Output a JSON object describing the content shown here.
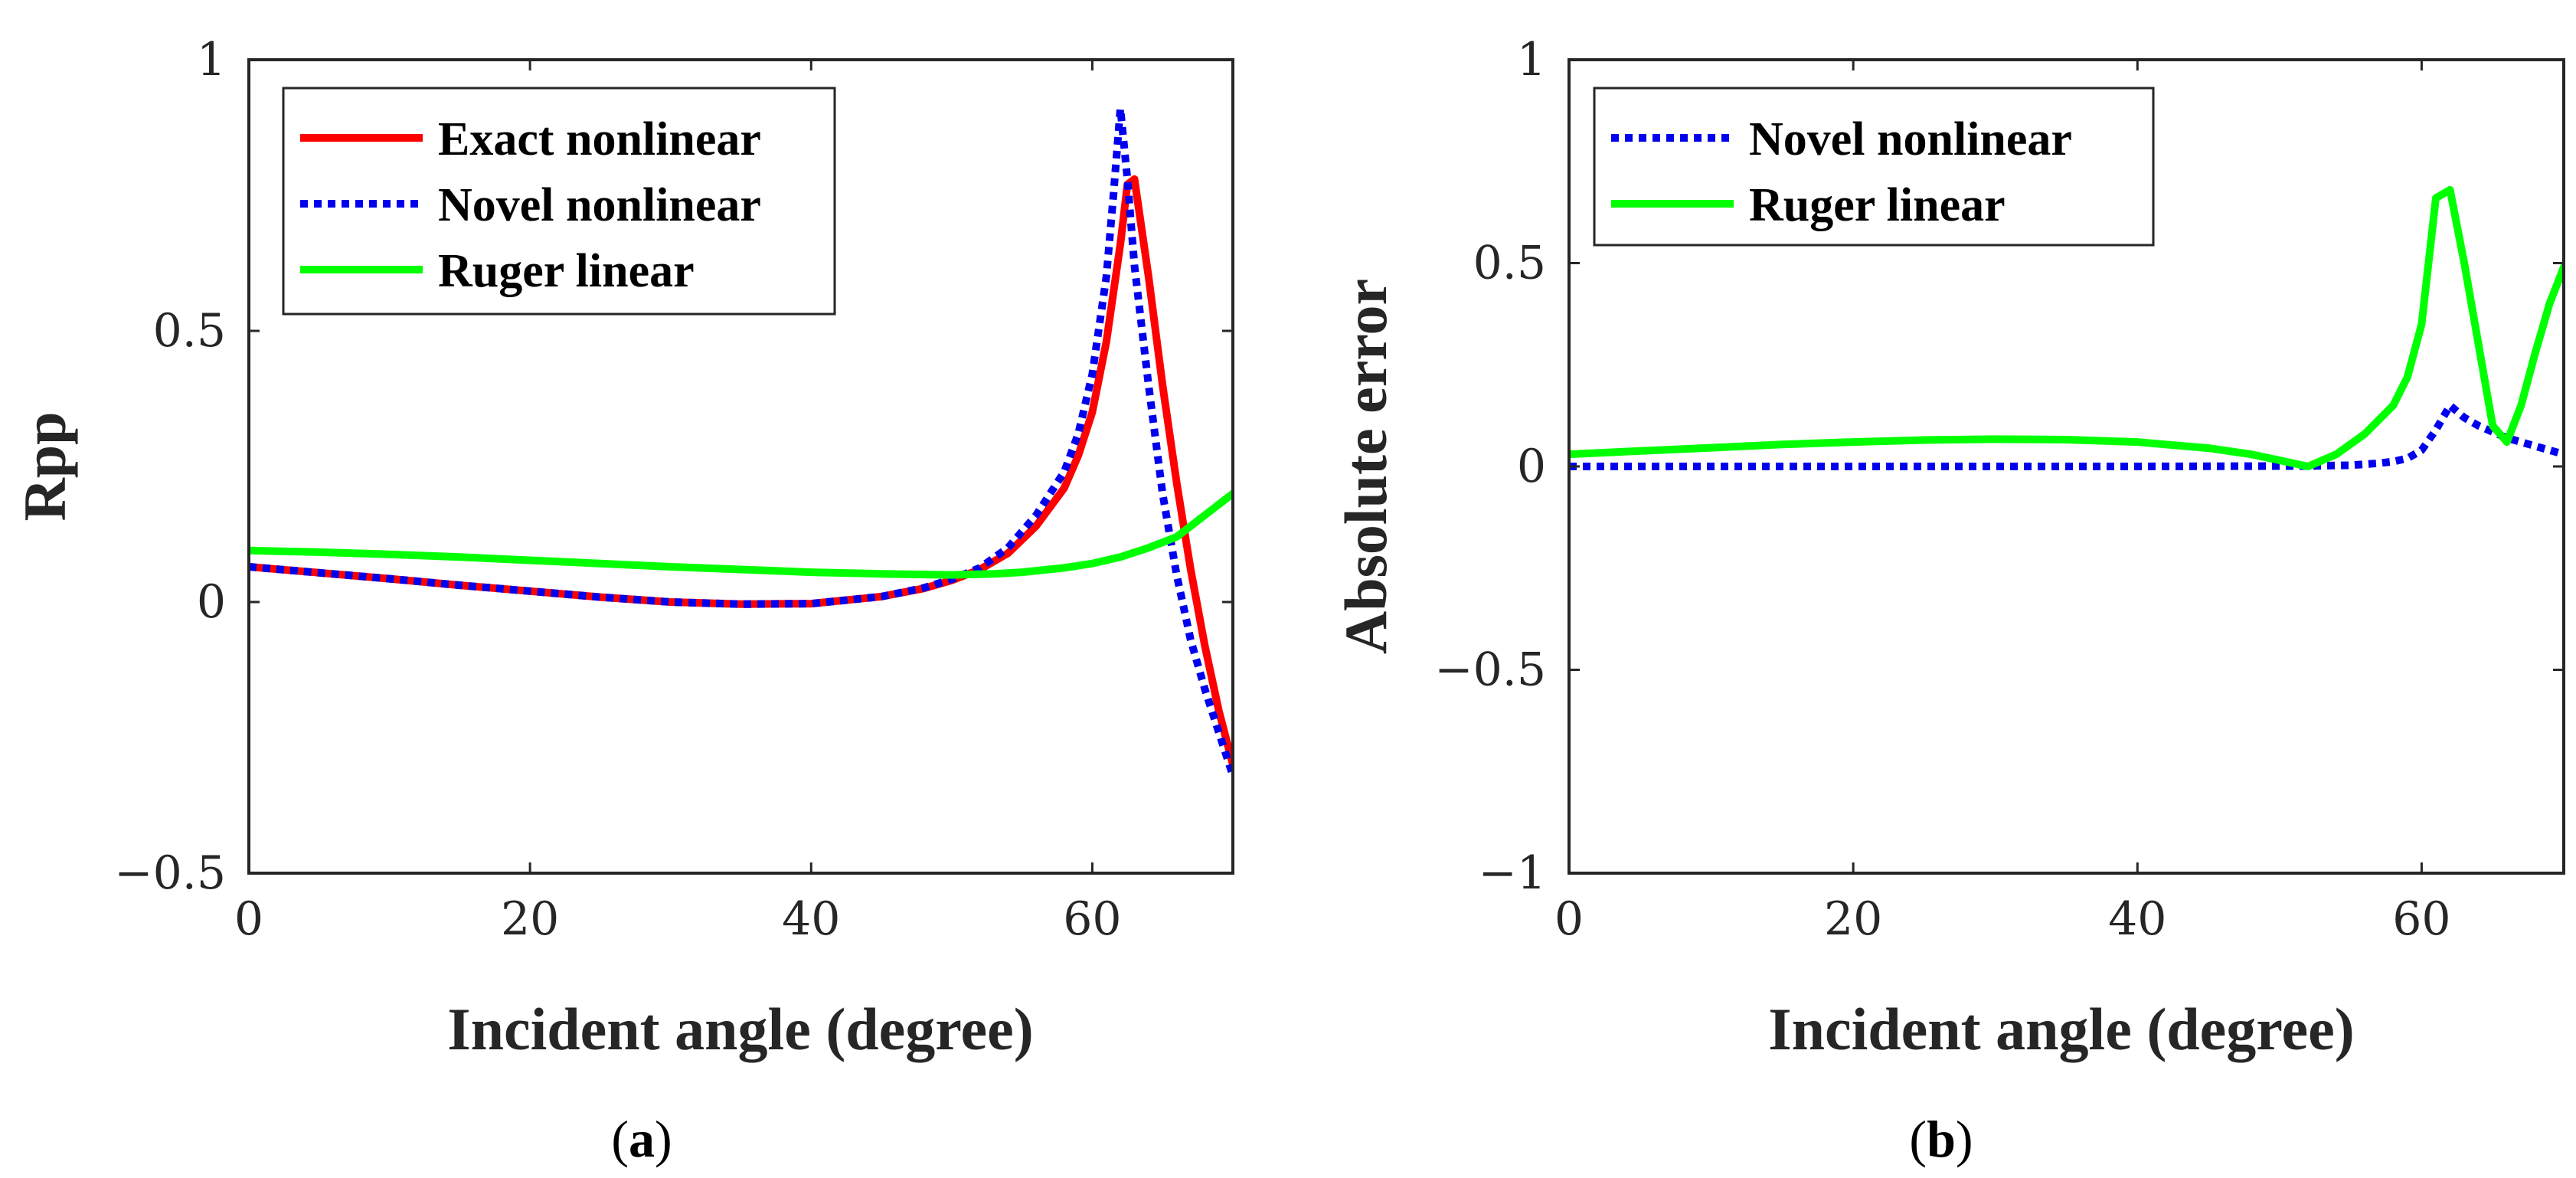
{
  "chart_data": [
    {
      "type": "line",
      "xlabel": "Incident angle (degree)",
      "ylabel": "Rpp",
      "xlim": [
        0,
        70
      ],
      "ylim": [
        -0.5,
        1
      ],
      "xticks": [
        0,
        20,
        40,
        60
      ],
      "xtick_labels": [
        "0",
        "20",
        "40",
        "60"
      ],
      "yticks": [
        -0.5,
        0,
        0.5,
        1
      ],
      "ytick_labels": [
        "−0.5",
        "0",
        "0.5",
        "1"
      ],
      "legend_position": "top-left",
      "caption": {
        "open": "(",
        "letter": "a",
        "close": ")"
      },
      "series": [
        {
          "name": "Exact nonlinear",
          "color": "#ff0000",
          "style": "solid",
          "x": [
            0,
            5,
            10,
            15,
            20,
            25,
            30,
            35,
            40,
            45,
            48,
            50,
            52,
            54,
            56,
            58,
            59,
            60,
            61,
            62,
            62.5,
            63,
            64,
            65,
            66,
            67,
            68,
            69,
            70
          ],
          "y": [
            0.065,
            0.054,
            0.043,
            0.031,
            0.02,
            0.009,
            0.0,
            -0.004,
            -0.003,
            0.01,
            0.025,
            0.04,
            0.06,
            0.09,
            0.14,
            0.21,
            0.27,
            0.35,
            0.48,
            0.66,
            0.77,
            0.78,
            0.6,
            0.4,
            0.22,
            0.06,
            -0.08,
            -0.2,
            -0.3
          ]
        },
        {
          "name": "Novel nonlinear",
          "color": "#0000ee",
          "style": "dotted",
          "x": [
            0,
            5,
            10,
            15,
            20,
            25,
            30,
            35,
            40,
            45,
            48,
            50,
            52,
            54,
            56,
            58,
            59,
            60,
            61,
            61.5,
            62,
            62.5,
            63,
            64,
            65,
            66,
            67,
            68,
            69,
            70
          ],
          "y": [
            0.065,
            0.054,
            0.043,
            0.031,
            0.02,
            0.009,
            0.0,
            -0.004,
            -0.003,
            0.01,
            0.026,
            0.042,
            0.063,
            0.1,
            0.16,
            0.24,
            0.31,
            0.42,
            0.6,
            0.75,
            0.91,
            0.78,
            0.62,
            0.4,
            0.2,
            0.05,
            -0.07,
            -0.16,
            -0.24,
            -0.32
          ]
        },
        {
          "name": "Ruger linear",
          "color": "#00ff00",
          "style": "solid",
          "x": [
            0,
            5,
            10,
            15,
            20,
            25,
            30,
            35,
            40,
            45,
            50,
            53,
            55,
            58,
            60,
            62,
            64,
            66,
            68,
            70
          ],
          "y": [
            0.095,
            0.092,
            0.088,
            0.083,
            0.077,
            0.071,
            0.065,
            0.06,
            0.055,
            0.052,
            0.05,
            0.052,
            0.055,
            0.063,
            0.071,
            0.083,
            0.1,
            0.12,
            0.16,
            0.2
          ]
        }
      ]
    },
    {
      "type": "line",
      "xlabel": "Incident angle (degree)",
      "ylabel": "Absolute error",
      "xlim": [
        0,
        70
      ],
      "ylim": [
        -1,
        1
      ],
      "xticks": [
        0,
        20,
        40,
        60
      ],
      "xtick_labels": [
        "0",
        "20",
        "40",
        "60"
      ],
      "yticks": [
        -1,
        -0.5,
        0,
        0.5,
        1
      ],
      "ytick_labels": [
        "−1",
        "−0.5",
        "0",
        "0.5",
        "1"
      ],
      "legend_position": "top-left",
      "caption": {
        "open": "(",
        "letter": "b",
        "close": ")"
      },
      "series": [
        {
          "name": "Novel nonlinear",
          "color": "#0000ee",
          "style": "dotted",
          "x": [
            0,
            10,
            20,
            30,
            40,
            50,
            52,
            55,
            57,
            58,
            59,
            60,
            61,
            62,
            63,
            64,
            65,
            66,
            67,
            68,
            69,
            70
          ],
          "y": [
            0.0,
            0.0,
            0.0,
            0.0,
            0.0,
            0.001,
            0.001,
            0.003,
            0.008,
            0.012,
            0.02,
            0.04,
            0.09,
            0.15,
            0.12,
            0.1,
            0.085,
            0.07,
            0.06,
            0.05,
            0.04,
            0.03
          ]
        },
        {
          "name": "Ruger linear",
          "color": "#00ff00",
          "style": "solid",
          "x": [
            0,
            5,
            10,
            15,
            20,
            25,
            30,
            35,
            40,
            45,
            48,
            50,
            52,
            54,
            56,
            58,
            59,
            60,
            61,
            62,
            63,
            64,
            65,
            66,
            67,
            68,
            69,
            70
          ],
          "y": [
            0.03,
            0.038,
            0.046,
            0.054,
            0.06,
            0.065,
            0.067,
            0.066,
            0.06,
            0.045,
            0.03,
            0.015,
            0.0,
            0.03,
            0.08,
            0.15,
            0.22,
            0.35,
            0.66,
            0.68,
            0.5,
            0.3,
            0.1,
            0.06,
            0.15,
            0.28,
            0.4,
            0.49
          ]
        }
      ]
    }
  ]
}
